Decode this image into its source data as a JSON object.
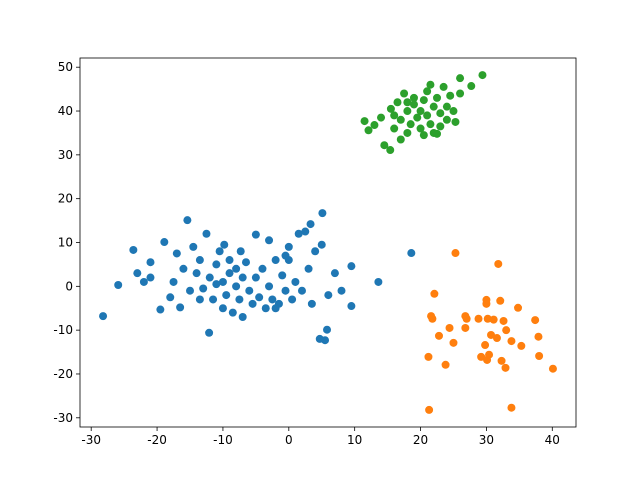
{
  "chart_data": {
    "type": "scatter",
    "xlim": [
      -31.7,
      43.6
    ],
    "ylim": [
      -32.1,
      52.1
    ],
    "xticks": [
      -30,
      -20,
      -10,
      0,
      10,
      20,
      30,
      40
    ],
    "yticks": [
      -30,
      -20,
      -10,
      0,
      10,
      20,
      30,
      40,
      50
    ],
    "series": [
      {
        "color": "#1f77b4",
        "x": [
          -28.2,
          -25.9,
          -23.6,
          -23,
          -22,
          -21,
          -21,
          -19.5,
          -18.9,
          -18,
          -17.5,
          -17,
          -16.5,
          -16,
          -15.4,
          -15,
          -14.5,
          -14,
          -13.5,
          -13,
          -12.5,
          -12.1,
          -12,
          -11.5,
          -11,
          -10.5,
          -10,
          -10,
          -9.8,
          -9.5,
          -9,
          -9,
          -8.5,
          -8,
          -8,
          -7.5,
          -7.3,
          -7,
          -7,
          -6.5,
          -6,
          -5.5,
          -5,
          -5,
          -4.5,
          -4,
          -3.5,
          -3,
          -3,
          -2.5,
          -2,
          -1.5,
          -1,
          -0.5,
          0,
          0,
          0.5,
          1,
          1.5,
          2,
          2.5,
          3,
          3.3,
          3.5,
          4,
          5.1,
          5,
          5.5,
          5.8,
          6,
          7,
          8,
          9.5,
          9.5,
          13.6,
          18.6,
          4.7,
          -0.5,
          -2,
          -11,
          -13.5
        ],
        "y": [
          -6.8,
          0.3,
          8.3,
          3,
          1,
          2,
          5.5,
          -5.3,
          10.1,
          -2.5,
          1,
          7.5,
          -4.8,
          4,
          15.1,
          -1,
          9,
          3,
          6,
          -0.5,
          12,
          -10.6,
          2,
          -3,
          5,
          8,
          -5,
          1,
          9.5,
          -2,
          3,
          6,
          -6,
          0,
          4,
          -3,
          8,
          2,
          -7,
          5.5,
          -1,
          -4,
          11.8,
          2,
          -2.5,
          4,
          -5,
          10.5,
          0,
          -3,
          6,
          -4,
          2.5,
          -1,
          9,
          6,
          -3,
          1,
          12,
          -1,
          12.5,
          4,
          14.2,
          -4,
          8,
          16.7,
          9.5,
          -12.3,
          -9.9,
          -2,
          3,
          -1,
          4.6,
          -4.5,
          1,
          7.6,
          -12,
          7,
          -5,
          0.5,
          -3
        ]
      },
      {
        "color": "#ff7f0e",
        "x": [
          25.3,
          31.8,
          22.1,
          21.6,
          21.8,
          26.8,
          27,
          30,
          30,
          32.1,
          34.8,
          28.8,
          30.2,
          31.1,
          32.6,
          24.4,
          26.8,
          22.8,
          31.6,
          30.7,
          37.4,
          37.9,
          33.8,
          35.3,
          25,
          29.8,
          21.2,
          23.8,
          29.2,
          30.4,
          30.1,
          32.3,
          32.9,
          38,
          40.1,
          21.3,
          33.8,
          33
        ],
        "y": [
          7.6,
          5.1,
          -1.7,
          -6.8,
          -7.4,
          -6.8,
          -7.4,
          -3.1,
          -4,
          -3.3,
          -4.9,
          -7.4,
          -7.4,
          -7.6,
          -7.9,
          -9.5,
          -9.5,
          -11.3,
          -11.8,
          -11.1,
          -7.7,
          -11.5,
          -12.5,
          -13.6,
          -12.9,
          -13.4,
          -16.1,
          -17.9,
          -16.1,
          -15.6,
          -16.8,
          -17,
          -18.6,
          -15.9,
          -18.8,
          -28.2,
          -27.7,
          -10
        ]
      },
      {
        "color": "#2ca02c",
        "x": [
          29.4,
          26,
          27.7,
          11.5,
          12.1,
          14.5,
          15.4,
          13,
          14,
          15.5,
          16,
          16.5,
          17,
          17.5,
          18,
          18,
          18.5,
          19,
          19,
          19.5,
          20,
          20,
          20.5,
          21,
          21,
          21.5,
          22,
          22,
          22.5,
          23,
          23,
          23.5,
          24,
          24,
          24.5,
          25,
          25.3,
          26,
          17,
          20.5,
          22.5,
          18,
          21.5,
          16
        ],
        "y": [
          48.2,
          47.5,
          45.7,
          37.7,
          35.6,
          32.2,
          31.1,
          36.8,
          38.5,
          40.5,
          36,
          42,
          38,
          44,
          35,
          40,
          37,
          41.5,
          43,
          38.5,
          40,
          36,
          42.5,
          39,
          44.5,
          37,
          41,
          35,
          43,
          39.5,
          36.5,
          45.5,
          41,
          38,
          43.5,
          40,
          37.5,
          44,
          33.5,
          34.5,
          34.8,
          42,
          46,
          39
        ]
      }
    ]
  }
}
